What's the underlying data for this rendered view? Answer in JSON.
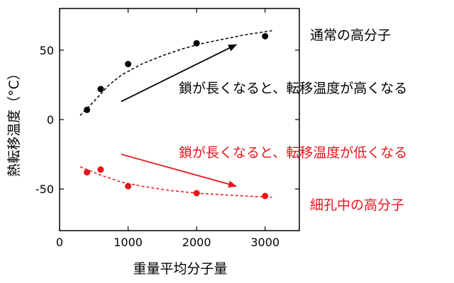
{
  "chart_data": {
    "type": "scatter",
    "xlabel": "重量平均分子量",
    "ylabel": "熱転移温度（°C）",
    "xlim": [
      0,
      3500
    ],
    "ylim": [
      -80,
      80
    ],
    "xticks": [
      0,
      1000,
      2000,
      3000
    ],
    "yticks": [
      50,
      0,
      -50
    ],
    "grid": false,
    "series": [
      {
        "name": "通常の高分子",
        "color": "#000000",
        "points": [
          [
            400,
            7
          ],
          [
            600,
            22
          ],
          [
            1000,
            40
          ],
          [
            2000,
            55
          ],
          [
            3000,
            60
          ]
        ],
        "trend": [
          [
            300,
            3
          ],
          [
            500,
            13
          ],
          [
            700,
            24
          ],
          [
            900,
            32
          ],
          [
            1200,
            40
          ],
          [
            1500,
            46
          ],
          [
            1800,
            51
          ],
          [
            2100,
            55
          ],
          [
            2400,
            58
          ],
          [
            2700,
            61
          ],
          [
            3100,
            64
          ]
        ]
      },
      {
        "name": "細孔中の高分子",
        "color": "#e8141a",
        "points": [
          [
            400,
            -38
          ],
          [
            600,
            -36
          ],
          [
            1000,
            -48
          ],
          [
            2000,
            -53
          ],
          [
            3000,
            -55
          ]
        ],
        "trend": [
          [
            300,
            -34
          ],
          [
            600,
            -40
          ],
          [
            900,
            -45
          ],
          [
            1200,
            -48
          ],
          [
            1600,
            -51
          ],
          [
            2000,
            -53
          ],
          [
            2500,
            -54.5
          ],
          [
            3100,
            -56
          ]
        ]
      }
    ],
    "arrows": [
      {
        "color": "#000000",
        "from": [
          900,
          13
        ],
        "to": [
          2580,
          54
        ]
      },
      {
        "color": "#e8141a",
        "from": [
          900,
          -25
        ],
        "to": [
          2580,
          -48
        ]
      }
    ],
    "annotations": [
      {
        "text": "通常の高分子",
        "color": "#000000"
      },
      {
        "text": "鎖が長くなると、転移温度が高くなる",
        "color": "#000000"
      },
      {
        "text": "鎖が長くなると、転移温度が低くなる",
        "color": "#e8141a"
      },
      {
        "text": "細孔中の高分子",
        "color": "#e8141a"
      }
    ]
  }
}
